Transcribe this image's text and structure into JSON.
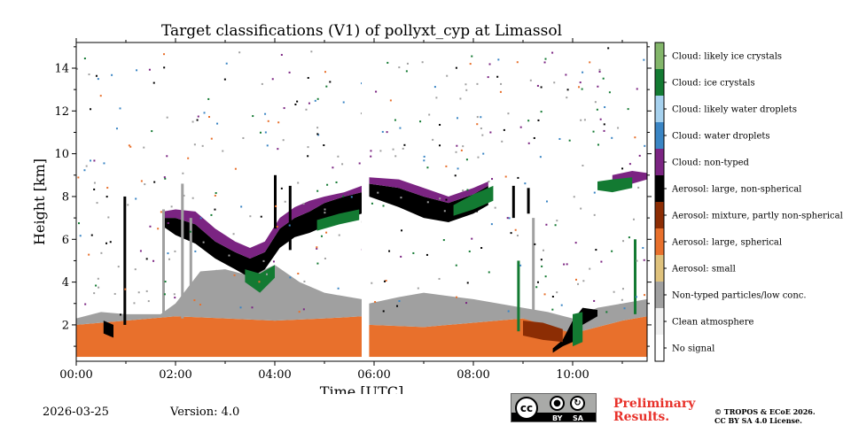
{
  "chart_data": {
    "type": "heatmap",
    "title": "Target classifications (V1) of pollyxt_cyp at Limassol",
    "xlabel": "Time [UTC]",
    "ylabel": "Height [km]",
    "xlim_hours": [
      0,
      11.5
    ],
    "ylim_km": [
      0.3,
      15.2
    ],
    "x_ticks": [
      {
        "value": 0,
        "label": "00:00"
      },
      {
        "value": 2,
        "label": "02:00"
      },
      {
        "value": 4,
        "label": "04:00"
      },
      {
        "value": 6,
        "label": "06:00"
      },
      {
        "value": 8,
        "label": "08:00"
      },
      {
        "value": 10,
        "label": "10:00"
      }
    ],
    "y_ticks": [
      {
        "value": 2,
        "label": "2"
      },
      {
        "value": 4,
        "label": "4"
      },
      {
        "value": 6,
        "label": "6"
      },
      {
        "value": 8,
        "label": "8"
      },
      {
        "value": 10,
        "label": "10"
      },
      {
        "value": 12,
        "label": "12"
      },
      {
        "value": 14,
        "label": "14"
      }
    ],
    "classes": [
      {
        "label": "No signal",
        "color": "#ffffff"
      },
      {
        "label": "Clean atmosphere",
        "color": "#f0f0f0"
      },
      {
        "label": "Non-typed particles/low conc.",
        "color": "#a0a0a0"
      },
      {
        "label": "Aerosol: small",
        "color": "#dfc27d"
      },
      {
        "label": "Aerosol: large, spherical",
        "color": "#e8702c"
      },
      {
        "label": "Aerosol: mixture, partly non-spherical",
        "color": "#8c2d04"
      },
      {
        "label": "Aerosol: large, non-spherical",
        "color": "#000000"
      },
      {
        "label": "Cloud: non-typed",
        "color": "#7b2482"
      },
      {
        "label": "Cloud: water droplets",
        "color": "#3a85c4"
      },
      {
        "label": "Cloud: likely water droplets",
        "color": "#a6d1ee"
      },
      {
        "label": "Cloud: ice crystals",
        "color": "#137a32"
      },
      {
        "label": "Cloud: likely ice crystals",
        "color": "#83b66a"
      }
    ],
    "data_gaps_hours": [
      [
        5.75,
        5.9
      ]
    ],
    "layers": [
      {
        "class": "Aerosol: large, spherical",
        "bottom": [
          [
            0,
            0.5
          ],
          [
            11.5,
            0.5
          ]
        ],
        "top": [
          [
            0,
            2.0
          ],
          [
            0.5,
            2.1
          ],
          [
            1,
            2.2
          ],
          [
            2,
            2.4
          ],
          [
            3,
            2.3
          ],
          [
            4,
            2.2
          ],
          [
            5,
            2.3
          ],
          [
            5.75,
            2.4
          ],
          [
            5.9,
            2.0
          ],
          [
            7,
            1.9
          ],
          [
            8,
            2.1
          ],
          [
            9,
            2.3
          ],
          [
            9.5,
            2.0
          ],
          [
            10,
            1.6
          ],
          [
            10.5,
            1.9
          ],
          [
            11,
            2.2
          ],
          [
            11.5,
            2.4
          ]
        ]
      },
      {
        "class": "Non-typed particles/low conc.",
        "bottom": [
          [
            0,
            2.0
          ],
          [
            1,
            2.2
          ],
          [
            2,
            2.4
          ],
          [
            3,
            2.3
          ],
          [
            4,
            2.2
          ],
          [
            5,
            2.3
          ],
          [
            5.75,
            2.4
          ],
          [
            5.9,
            2.0
          ],
          [
            7,
            1.9
          ],
          [
            8,
            2.1
          ],
          [
            9,
            2.3
          ],
          [
            10,
            1.6
          ],
          [
            11,
            2.2
          ],
          [
            11.5,
            2.4
          ]
        ],
        "top": [
          [
            0,
            2.3
          ],
          [
            0.5,
            2.6
          ],
          [
            1,
            2.5
          ],
          [
            1.7,
            2.5
          ],
          [
            2,
            3.0
          ],
          [
            2.5,
            4.5
          ],
          [
            3,
            4.6
          ],
          [
            3.5,
            4.3
          ],
          [
            4,
            4.8
          ],
          [
            4.5,
            4.0
          ],
          [
            5,
            3.5
          ],
          [
            5.75,
            3.2
          ],
          [
            5.9,
            3.0
          ],
          [
            6.5,
            3.3
          ],
          [
            7,
            3.5
          ],
          [
            8,
            3.2
          ],
          [
            8.5,
            3.0
          ],
          [
            9,
            2.8
          ],
          [
            9.5,
            2.6
          ],
          [
            10,
            2.3
          ],
          [
            10.5,
            2.8
          ],
          [
            11,
            3.0
          ],
          [
            11.5,
            3.2
          ]
        ]
      },
      {
        "class": "Aerosol: large, non-spherical",
        "bottom": [
          [
            1.75,
            6.6
          ],
          [
            2,
            6.2
          ],
          [
            2.4,
            5.8
          ],
          [
            2.8,
            5.1
          ],
          [
            3.2,
            4.6
          ],
          [
            3.5,
            4.2
          ],
          [
            3.8,
            4.6
          ],
          [
            4.1,
            5.6
          ],
          [
            4.4,
            6.1
          ],
          [
            4.7,
            6.3
          ],
          [
            5,
            6.6
          ],
          [
            5.4,
            6.9
          ],
          [
            5.75,
            7.2
          ]
        ],
        "top": [
          [
            1.75,
            7.0
          ],
          [
            2,
            7.0
          ],
          [
            2.4,
            6.7
          ],
          [
            2.8,
            5.9
          ],
          [
            3.2,
            5.4
          ],
          [
            3.5,
            5.1
          ],
          [
            3.8,
            5.4
          ],
          [
            4.1,
            6.5
          ],
          [
            4.4,
            7.0
          ],
          [
            4.7,
            7.3
          ],
          [
            5,
            7.7
          ],
          [
            5.4,
            8.0
          ],
          [
            5.75,
            8.2
          ]
        ]
      },
      {
        "class": "Cloud: non-typed",
        "bottom": [
          [
            1.75,
            7.0
          ],
          [
            2,
            7.0
          ],
          [
            2.4,
            6.7
          ],
          [
            2.8,
            5.9
          ],
          [
            3.2,
            5.4
          ],
          [
            3.5,
            5.1
          ],
          [
            3.8,
            5.4
          ],
          [
            4.1,
            6.5
          ],
          [
            4.4,
            7.0
          ],
          [
            4.7,
            7.3
          ],
          [
            5,
            7.7
          ],
          [
            5.4,
            8.0
          ],
          [
            5.75,
            8.2
          ]
        ],
        "top": [
          [
            1.75,
            7.3
          ],
          [
            2,
            7.4
          ],
          [
            2.4,
            7.3
          ],
          [
            2.8,
            6.5
          ],
          [
            3.2,
            5.9
          ],
          [
            3.5,
            5.6
          ],
          [
            3.8,
            5.9
          ],
          [
            4.1,
            7.0
          ],
          [
            4.4,
            7.5
          ],
          [
            4.7,
            7.8
          ],
          [
            5,
            8.0
          ],
          [
            5.4,
            8.2
          ],
          [
            5.75,
            8.5
          ]
        ]
      },
      {
        "class": "Aerosol: large, non-spherical",
        "bottom": [
          [
            5.9,
            8.0
          ],
          [
            6.5,
            7.5
          ],
          [
            7,
            7.0
          ],
          [
            7.5,
            6.8
          ],
          [
            8,
            7.2
          ],
          [
            8.3,
            7.6
          ]
        ],
        "top": [
          [
            5.9,
            8.6
          ],
          [
            6.5,
            8.4
          ],
          [
            7,
            8.0
          ],
          [
            7.5,
            7.7
          ],
          [
            8,
            8.1
          ],
          [
            8.3,
            8.5
          ]
        ]
      },
      {
        "class": "Cloud: non-typed",
        "bottom": [
          [
            5.9,
            8.6
          ],
          [
            6.5,
            8.4
          ],
          [
            7,
            8.0
          ],
          [
            7.5,
            7.7
          ],
          [
            8,
            8.1
          ],
          [
            8.3,
            8.5
          ]
        ],
        "top": [
          [
            5.9,
            8.9
          ],
          [
            6.5,
            8.8
          ],
          [
            7,
            8.4
          ],
          [
            7.5,
            8.0
          ],
          [
            8,
            8.4
          ],
          [
            8.3,
            8.7
          ]
        ]
      },
      {
        "class": "Cloud: ice crystals",
        "bottom": [
          [
            7.6,
            7.1
          ],
          [
            8,
            7.4
          ],
          [
            8.4,
            7.8
          ]
        ],
        "top": [
          [
            7.6,
            7.6
          ],
          [
            8,
            8.1
          ],
          [
            8.4,
            8.5
          ]
        ]
      },
      {
        "class": "Cloud: ice crystals",
        "bottom": [
          [
            3.4,
            4.0
          ],
          [
            3.7,
            3.5
          ],
          [
            4.0,
            4.2
          ]
        ],
        "top": [
          [
            3.4,
            4.6
          ],
          [
            3.7,
            4.4
          ],
          [
            4.0,
            4.8
          ]
        ]
      },
      {
        "class": "Cloud: ice crystals",
        "bottom": [
          [
            4.85,
            6.4
          ],
          [
            5.3,
            6.7
          ],
          [
            5.7,
            6.9
          ]
        ],
        "top": [
          [
            4.85,
            6.9
          ],
          [
            5.3,
            7.2
          ],
          [
            5.7,
            7.4
          ]
        ]
      },
      {
        "class": "Aerosol: large, non-spherical",
        "bottom": [
          [
            9.6,
            0.7
          ],
          [
            9.8,
            1.0
          ],
          [
            10,
            1.2
          ],
          [
            10.2,
            2.0
          ],
          [
            10.5,
            2.4
          ]
        ],
        "top": [
          [
            9.6,
            0.9
          ],
          [
            9.8,
            1.3
          ],
          [
            10,
            2.2
          ],
          [
            10.2,
            2.8
          ],
          [
            10.5,
            2.7
          ]
        ]
      },
      {
        "class": "Cloud: ice crystals",
        "bottom": [
          [
            10.0,
            1.0
          ],
          [
            10.2,
            1.2
          ]
        ],
        "top": [
          [
            10.0,
            2.5
          ],
          [
            10.2,
            2.6
          ]
        ]
      },
      {
        "class": "Aerosol: mixture, partly non-spherical",
        "bottom": [
          [
            9.0,
            1.5
          ],
          [
            9.4,
            1.3
          ],
          [
            9.8,
            1.2
          ]
        ],
        "top": [
          [
            9.0,
            2.2
          ],
          [
            9.4,
            2.1
          ],
          [
            9.8,
            1.8
          ]
        ]
      },
      {
        "class": "Cloud: non-typed",
        "bottom": [
          [
            10.8,
            8.6
          ],
          [
            11.2,
            8.6
          ],
          [
            11.5,
            8.8
          ]
        ],
        "top": [
          [
            10.8,
            9.0
          ],
          [
            11.2,
            9.2
          ],
          [
            11.5,
            9.1
          ]
        ]
      },
      {
        "class": "Cloud: ice crystals",
        "bottom": [
          [
            10.5,
            8.3
          ],
          [
            10.8,
            8.2
          ],
          [
            11.2,
            8.4
          ]
        ],
        "top": [
          [
            10.5,
            8.7
          ],
          [
            10.8,
            8.8
          ],
          [
            11.2,
            8.9
          ]
        ]
      },
      {
        "class": "Aerosol: large, non-spherical",
        "bottom": [
          [
            0.55,
            1.6
          ],
          [
            0.65,
            1.5
          ],
          [
            0.75,
            1.4
          ]
        ],
        "top": [
          [
            0.55,
            2.2
          ],
          [
            0.65,
            2.1
          ],
          [
            0.75,
            2.0
          ]
        ]
      }
    ],
    "spikes": [
      {
        "x": 0.97,
        "y0": 2.0,
        "y1": 8.0,
        "class": "Aerosol: large, non-spherical"
      },
      {
        "x": 1.75,
        "y0": 2.4,
        "y1": 7.4,
        "class": "Non-typed particles/low conc."
      },
      {
        "x": 2.13,
        "y0": 2.3,
        "y1": 8.6,
        "class": "Non-typed particles/low conc."
      },
      {
        "x": 2.3,
        "y0": 2.4,
        "y1": 7.0,
        "class": "Non-typed particles/low conc."
      },
      {
        "x": 4.0,
        "y0": 6.5,
        "y1": 9.0,
        "class": "Aerosol: large, non-spherical"
      },
      {
        "x": 4.3,
        "y0": 5.5,
        "y1": 8.5,
        "class": "Aerosol: large, non-spherical"
      },
      {
        "x": 8.8,
        "y0": 7.0,
        "y1": 8.5,
        "class": "Aerosol: large, non-spherical"
      },
      {
        "x": 9.1,
        "y0": 7.2,
        "y1": 8.4,
        "class": "Aerosol: large, non-spherical"
      },
      {
        "x": 8.9,
        "y0": 1.7,
        "y1": 5.0,
        "class": "Cloud: ice crystals"
      },
      {
        "x": 9.2,
        "y0": 2.5,
        "y1": 7.0,
        "class": "Non-typed particles/low conc."
      },
      {
        "x": 11.25,
        "y0": 2.5,
        "y1": 6.0,
        "class": "Cloud: ice crystals"
      }
    ],
    "legend_position": "right colorbar"
  },
  "footer": {
    "date": "2026-03-25",
    "version": "Version: 4.0",
    "license_badge": {
      "cc": "cc",
      "by": "BY",
      "sa": "SA"
    },
    "preliminary_line1": "Preliminary",
    "preliminary_line2": "Results.",
    "copyright_line1": "© TROPOS & ECoE 2026.",
    "copyright_line2": "CC BY SA 4.0 License."
  }
}
